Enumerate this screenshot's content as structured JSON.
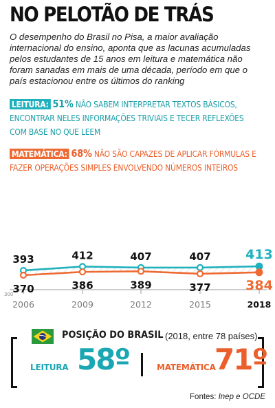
{
  "header": {
    "title": "NO PELOTÃO DE TRÁS",
    "subtitle": "O desempenho do Brasil no Pisa, a maior avaliação internacional do ensino, aponta que as lacunas acumuladas pelos estudantes de 15 anos em leitura e matemática não foram sanadas em mais de uma década, período em que o país estacionou entre os últimos do ranking"
  },
  "stats": {
    "reading": {
      "tag": "LEITURA:",
      "percent": "51%",
      "text": "NÃO SABEM INTERPRETAR TEXTOS BÁSICOS, ENCONTRAR NELES INFORMAÇÕES TRIVIAIS E TECER REFLEXÕES COM BASE NO QUE LEEM"
    },
    "math": {
      "tag": "MATEMÁTICA:",
      "percent": "68%",
      "text": "NÃO SÃO CAPAZES DE APLICAR FÓRMULAS E FAZER OPERAÇÕES SIMPLES ENVOLVENDO NÚMEROS INTEIROS"
    }
  },
  "chart_data": {
    "type": "line",
    "x": [
      "2006",
      "2009",
      "2012",
      "2015",
      "2018"
    ],
    "ylim": [
      300,
      420
    ],
    "y_tick_labels": [
      "300"
    ],
    "grid": false,
    "colors": {
      "reading": "#1fb1bd",
      "math": "#ee6a33",
      "hatch": "#d2d2d2"
    },
    "series": [
      {
        "key": "reading",
        "values": [
          393,
          412,
          407,
          407,
          413
        ]
      },
      {
        "key": "math",
        "values": [
          370,
          386,
          389,
          377,
          384
        ]
      }
    ]
  },
  "ranking": {
    "title": "POSIÇÃO DO BRASIL",
    "note": "(2018, entre 78 países)",
    "reading": {
      "label": "LEITURA",
      "value": "58º"
    },
    "math": {
      "label": "MATEMÁTICA",
      "value": "71º"
    }
  },
  "source": {
    "prefix": "Fontes: ",
    "names": "Inep e OCDE"
  }
}
